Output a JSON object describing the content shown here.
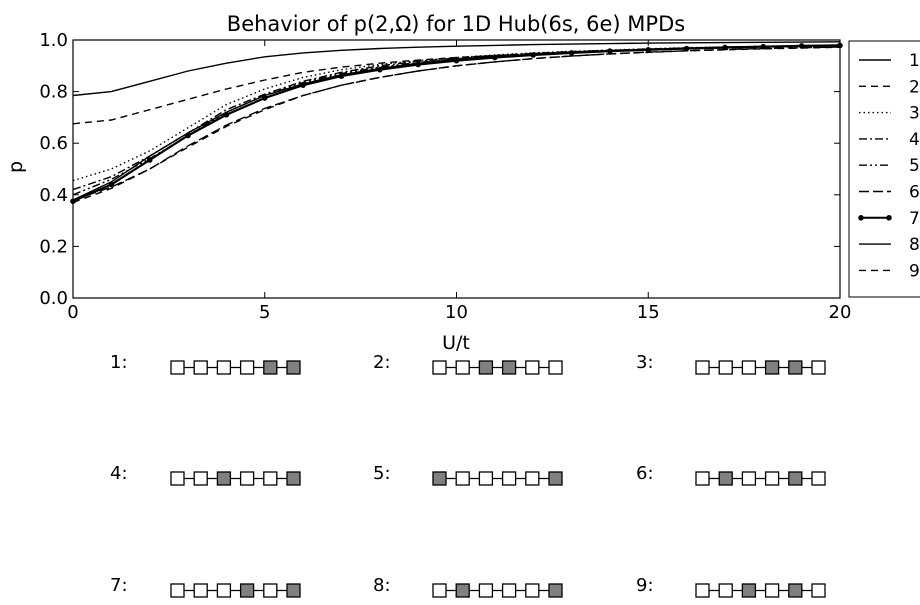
{
  "chart_data": {
    "type": "line",
    "title": "Behavior of p(2,Ω) for 1D Hub(6s, 6e) MPDs",
    "xlabel": "U/t",
    "ylabel": "p",
    "xlim": [
      0,
      20
    ],
    "ylim": [
      0.0,
      1.0
    ],
    "xticks": [
      0,
      5,
      10,
      15,
      20
    ],
    "yticks": [
      0.0,
      0.2,
      0.4,
      0.6,
      0.8,
      1.0
    ],
    "xtick_labels": [
      "0",
      "5",
      "10",
      "15",
      "20"
    ],
    "ytick_labels": [
      "0.0",
      "0.2",
      "0.4",
      "0.6",
      "0.8",
      "1.0"
    ],
    "grid": false,
    "legend_position": "right",
    "x": [
      0,
      1,
      2,
      3,
      4,
      5,
      6,
      7,
      8,
      9,
      10,
      11,
      12,
      13,
      14,
      15,
      16,
      17,
      18,
      19,
      20
    ],
    "series": [
      {
        "name": "1",
        "style": "solid",
        "values": [
          0.785,
          0.8,
          0.84,
          0.88,
          0.91,
          0.935,
          0.95,
          0.96,
          0.967,
          0.972,
          0.976,
          0.979,
          0.982,
          0.984,
          0.986,
          0.988,
          0.989,
          0.99,
          0.991,
          0.992,
          0.993
        ]
      },
      {
        "name": "2",
        "style": "dashed",
        "values": [
          0.675,
          0.69,
          0.73,
          0.77,
          0.81,
          0.845,
          0.875,
          0.895,
          0.91,
          0.922,
          0.932,
          0.94,
          0.947,
          0.953,
          0.958,
          0.962,
          0.966,
          0.969,
          0.972,
          0.975,
          0.977
        ]
      },
      {
        "name": "3",
        "style": "dotted",
        "values": [
          0.455,
          0.5,
          0.57,
          0.66,
          0.75,
          0.81,
          0.855,
          0.885,
          0.905,
          0.92,
          0.932,
          0.942,
          0.95,
          0.956,
          0.961,
          0.966,
          0.97,
          0.973,
          0.976,
          0.978,
          0.98
        ]
      },
      {
        "name": "4",
        "style": "dashdot",
        "values": [
          0.42,
          0.47,
          0.55,
          0.64,
          0.73,
          0.79,
          0.84,
          0.875,
          0.9,
          0.917,
          0.93,
          0.94,
          0.948,
          0.955,
          0.96,
          0.965,
          0.969,
          0.972,
          0.975,
          0.977,
          0.979
        ]
      },
      {
        "name": "5",
        "style": "dashdotdot",
        "values": [
          0.4,
          0.46,
          0.54,
          0.63,
          0.72,
          0.785,
          0.835,
          0.87,
          0.895,
          0.913,
          0.927,
          0.938,
          0.946,
          0.953,
          0.959,
          0.964,
          0.968,
          0.971,
          0.974,
          0.976,
          0.978
        ]
      },
      {
        "name": "6",
        "style": "longdash",
        "values": [
          0.38,
          0.43,
          0.5,
          0.59,
          0.67,
          0.735,
          0.785,
          0.825,
          0.855,
          0.88,
          0.9,
          0.915,
          0.928,
          0.938,
          0.946,
          0.953,
          0.958,
          0.963,
          0.967,
          0.97,
          0.973
        ]
      },
      {
        "name": "7",
        "style": "solid-marker",
        "values": [
          0.375,
          0.44,
          0.535,
          0.63,
          0.71,
          0.775,
          0.825,
          0.86,
          0.885,
          0.905,
          0.92,
          0.932,
          0.942,
          0.95,
          0.957,
          0.962,
          0.967,
          0.971,
          0.974,
          0.977,
          0.979
        ]
      },
      {
        "name": "8",
        "style": "solid",
        "values": [
          0.38,
          0.45,
          0.55,
          0.64,
          0.72,
          0.785,
          0.83,
          0.865,
          0.89,
          0.91,
          0.925,
          0.936,
          0.945,
          0.953,
          0.959,
          0.964,
          0.968,
          0.972,
          0.975,
          0.977,
          0.979
        ]
      },
      {
        "name": "9",
        "style": "dashed",
        "values": [
          0.37,
          0.425,
          0.5,
          0.585,
          0.665,
          0.73,
          0.785,
          0.825,
          0.855,
          0.88,
          0.9,
          0.915,
          0.928,
          0.938,
          0.946,
          0.952,
          0.958,
          0.962,
          0.966,
          0.969,
          0.972
        ]
      }
    ],
    "configurations": [
      {
        "label": "1:",
        "sites": [
          0,
          0,
          0,
          0,
          1,
          1
        ]
      },
      {
        "label": "2:",
        "sites": [
          0,
          0,
          1,
          1,
          0,
          0
        ]
      },
      {
        "label": "3:",
        "sites": [
          0,
          0,
          0,
          1,
          1,
          0
        ]
      },
      {
        "label": "4:",
        "sites": [
          0,
          0,
          1,
          0,
          0,
          1
        ]
      },
      {
        "label": "5:",
        "sites": [
          1,
          0,
          0,
          0,
          0,
          1
        ]
      },
      {
        "label": "6:",
        "sites": [
          0,
          1,
          0,
          0,
          1,
          0
        ]
      },
      {
        "label": "7:",
        "sites": [
          0,
          0,
          0,
          1,
          0,
          1
        ]
      },
      {
        "label": "8:",
        "sites": [
          0,
          1,
          0,
          0,
          0,
          1
        ]
      },
      {
        "label": "9:",
        "sites": [
          0,
          0,
          1,
          0,
          1,
          0
        ]
      }
    ],
    "colors": {
      "line": "#000000",
      "filled_site": "#808080",
      "empty_site": "#ffffff"
    }
  }
}
